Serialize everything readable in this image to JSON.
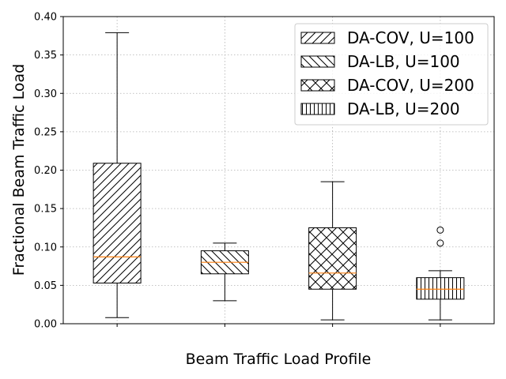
{
  "chart_data": {
    "type": "boxplot",
    "xlabel": "Beam Traffic Load Profile",
    "ylabel": "Fractional Beam Traffic Load",
    "ylim": [
      0,
      0.4
    ],
    "yticks": [
      "0.00",
      "0.05",
      "0.10",
      "0.15",
      "0.20",
      "0.25",
      "0.30",
      "0.35",
      "0.40"
    ],
    "grid": true,
    "legend_position": "top-right",
    "median_color": "#ff7f0e",
    "series": [
      {
        "name": "DA-COV, U=100",
        "hatch": "diagonal-forward",
        "whisker_low": 0.008,
        "q1": 0.053,
        "median": 0.087,
        "q3": 0.209,
        "whisker_high": 0.379,
        "outliers": []
      },
      {
        "name": "DA-LB, U=100",
        "hatch": "diagonal-back",
        "whisker_low": 0.03,
        "q1": 0.065,
        "median": 0.08,
        "q3": 0.095,
        "whisker_high": 0.105,
        "outliers": []
      },
      {
        "name": "DA-COV, U=200",
        "hatch": "crosshatch",
        "whisker_low": 0.005,
        "q1": 0.045,
        "median": 0.066,
        "q3": 0.125,
        "whisker_high": 0.185,
        "outliers": []
      },
      {
        "name": "DA-LB, U=200",
        "hatch": "vertical",
        "whisker_low": 0.005,
        "q1": 0.032,
        "median": 0.045,
        "q3": 0.06,
        "whisker_high": 0.069,
        "outliers": [
          0.105,
          0.122
        ]
      }
    ]
  }
}
